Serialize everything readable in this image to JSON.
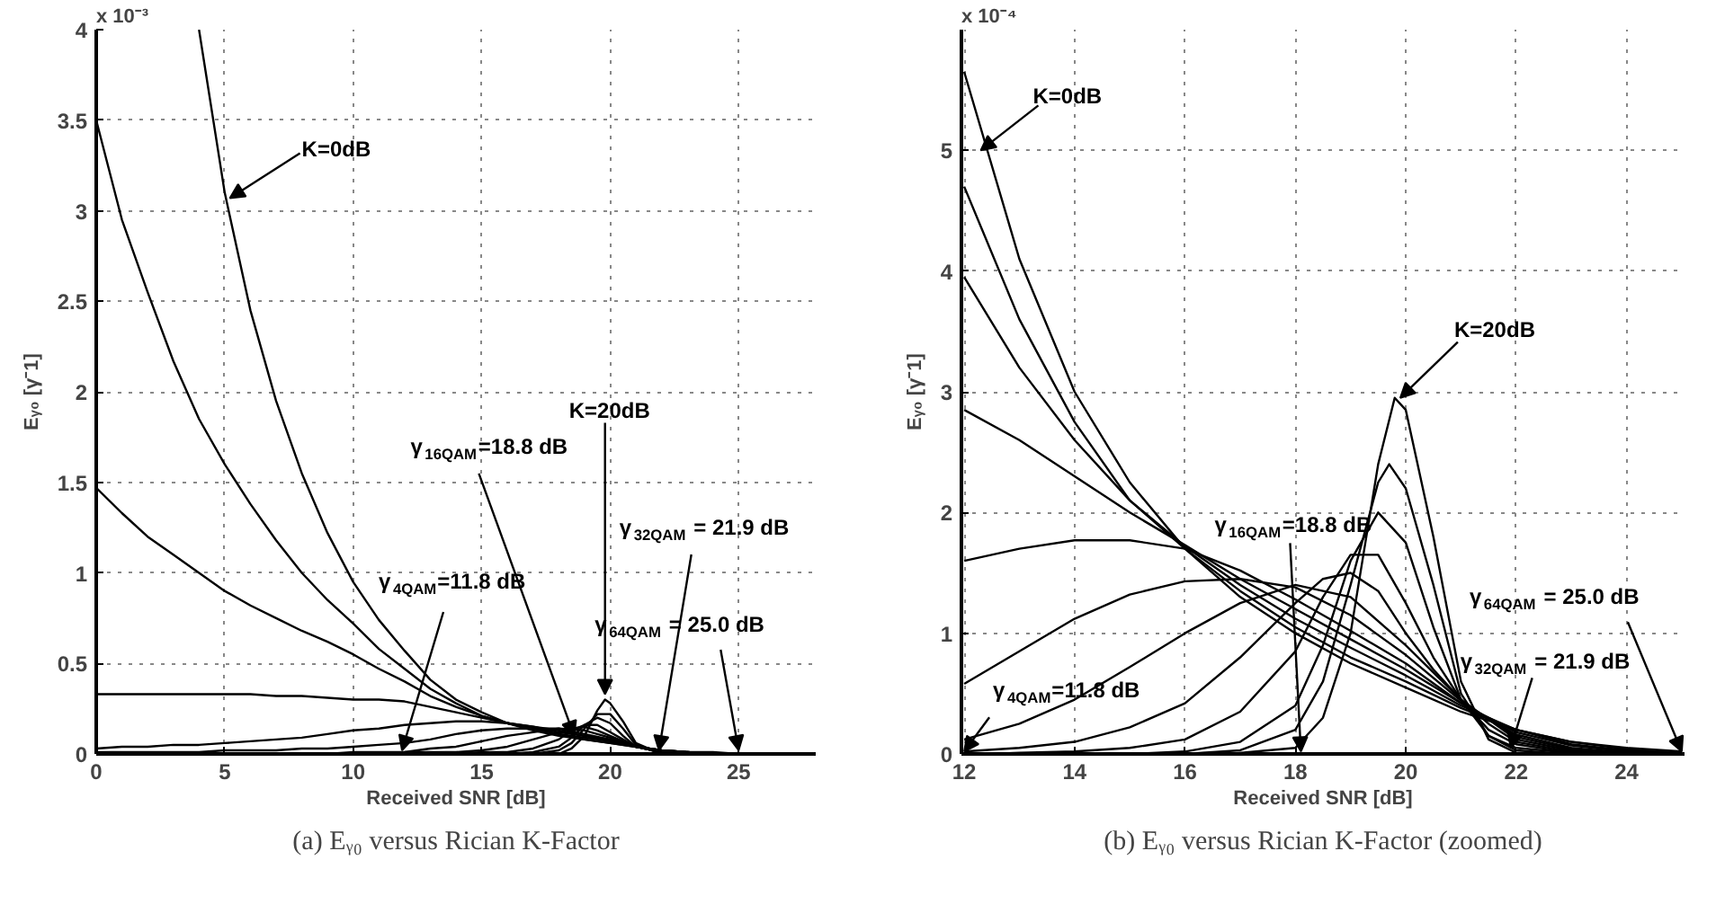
{
  "chart_data": [
    {
      "type": "line",
      "title": "(a) Eᵧ₀ versus Rician K-Factor",
      "xlabel": "Received SNR [dB]",
      "ylabel": "Eᵧ₀ [γ⁻1]",
      "xlim": [
        0,
        28
      ],
      "ylim": [
        0,
        4
      ],
      "xticks": [
        0,
        5,
        10,
        15,
        20,
        25
      ],
      "yticks": [
        0,
        0.5,
        1,
        1.5,
        2,
        2.5,
        3,
        3.5,
        4
      ],
      "grid": true,
      "x": [
        0,
        1,
        2,
        3,
        4,
        5,
        6,
        7,
        8,
        9,
        10,
        11,
        12,
        13,
        14,
        15,
        16,
        17,
        18,
        19,
        20,
        21,
        22,
        23,
        24,
        25
      ],
      "series": [
        {
          "color": "#000000",
          "x": [
            4,
            5,
            6,
            7,
            8,
            9,
            10,
            11,
            12,
            13,
            14,
            15,
            16,
            17,
            18,
            19,
            20,
            21,
            22,
            23,
            24,
            25
          ],
          "values": [
            4.0,
            3.1,
            2.45,
            1.95,
            1.55,
            1.22,
            0.95,
            0.74,
            0.57,
            0.41,
            0.3,
            0.23,
            0.17,
            0.13,
            0.1,
            0.08,
            0.06,
            0.04,
            0.02,
            0.01,
            0.01,
            0
          ]
        },
        {
          "color": "#000000",
          "values": [
            3.5,
            2.95,
            2.55,
            2.17,
            1.85,
            1.6,
            1.38,
            1.18,
            1.0,
            0.85,
            0.72,
            0.58,
            0.47,
            0.36,
            0.28,
            0.21,
            0.17,
            0.14,
            0.11,
            0.08,
            0.06,
            0.04,
            0.02,
            0.01,
            0,
            0
          ]
        },
        {
          "color": "#000000",
          "values": [
            1.47,
            1.33,
            1.2,
            1.1,
            1.0,
            0.9,
            0.82,
            0.75,
            0.68,
            0.62,
            0.55,
            0.47,
            0.4,
            0.32,
            0.26,
            0.21,
            0.17,
            0.14,
            0.11,
            0.09,
            0.07,
            0.04,
            0.02,
            0.01,
            0,
            0
          ]
        },
        {
          "color": "#000000",
          "values": [
            0.33,
            0.33,
            0.33,
            0.33,
            0.33,
            0.33,
            0.33,
            0.32,
            0.32,
            0.31,
            0.3,
            0.3,
            0.29,
            0.26,
            0.23,
            0.2,
            0.17,
            0.15,
            0.12,
            0.1,
            0.07,
            0.04,
            0.02,
            0.01,
            0,
            0
          ]
        },
        {
          "color": "#000000",
          "x": [
            0,
            1,
            2,
            3,
            4,
            5,
            6,
            7,
            8,
            9,
            10,
            11,
            12,
            13,
            14,
            15,
            16,
            17,
            18,
            19,
            20,
            21,
            22,
            23,
            24
          ],
          "values": [
            0.03,
            0.04,
            0.04,
            0.05,
            0.05,
            0.06,
            0.07,
            0.08,
            0.09,
            0.11,
            0.13,
            0.14,
            0.16,
            0.17,
            0.18,
            0.18,
            0.17,
            0.15,
            0.13,
            0.1,
            0.08,
            0.04,
            0.02,
            0.01,
            0
          ]
        },
        {
          "color": "#000000",
          "x": [
            0,
            1,
            2,
            3,
            4,
            5,
            6,
            7,
            8,
            9,
            10,
            11,
            12,
            13,
            14,
            15,
            16,
            17,
            18,
            19,
            20,
            21,
            22,
            23
          ],
          "values": [
            0.01,
            0.01,
            0.01,
            0.01,
            0.01,
            0.02,
            0.02,
            0.02,
            0.03,
            0.03,
            0.04,
            0.05,
            0.06,
            0.08,
            0.11,
            0.13,
            0.14,
            0.14,
            0.14,
            0.11,
            0.08,
            0.04,
            0.01,
            0
          ]
        },
        {
          "color": "#000000",
          "x": [
            8,
            9,
            10,
            11,
            12,
            13,
            14,
            15,
            16,
            17,
            18,
            19,
            20,
            21,
            22,
            23
          ],
          "values": [
            0,
            0,
            0.01,
            0.01,
            0.01,
            0.03,
            0.04,
            0.07,
            0.1,
            0.12,
            0.14,
            0.13,
            0.09,
            0.04,
            0.01,
            0
          ]
        },
        {
          "color": "#000000",
          "x": [
            12,
            14,
            15,
            16,
            17,
            18,
            18.5,
            19,
            19.5,
            20,
            20.5,
            21,
            22,
            23
          ],
          "values": [
            0.01,
            0.01,
            0.02,
            0.04,
            0.08,
            0.12,
            0.14,
            0.15,
            0.13,
            0.1,
            0.07,
            0.04,
            0.01,
            0
          ]
        },
        {
          "color": "#000000",
          "x": [
            13,
            14,
            15,
            16,
            17,
            18,
            18.5,
            19,
            19.5,
            20,
            20.5,
            21,
            22,
            23.5
          ],
          "values": [
            0,
            0,
            0.01,
            0.01,
            0.03,
            0.08,
            0.13,
            0.16,
            0.16,
            0.12,
            0.08,
            0.04,
            0.01,
            0
          ]
        },
        {
          "color": "#000000",
          "x": [
            15,
            16,
            17,
            18,
            18.5,
            19,
            19.5,
            20,
            20.5,
            21,
            22,
            22.5
          ],
          "values": [
            0,
            0,
            0.01,
            0.04,
            0.09,
            0.16,
            0.2,
            0.17,
            0.1,
            0.04,
            0.01,
            0
          ]
        },
        {
          "color": "#000000",
          "x": [
            16,
            17,
            18,
            18.5,
            19,
            19.5,
            20,
            20.5,
            21,
            22,
            22.8
          ],
          "values": [
            0,
            0,
            0.02,
            0.06,
            0.14,
            0.22,
            0.22,
            0.14,
            0.05,
            0,
            0
          ]
        },
        {
          "color": "#000000",
          "x": [
            17,
            18,
            18.5,
            19,
            19.5,
            19.8,
            20,
            20.5,
            21,
            22,
            22.2
          ],
          "values": [
            0,
            0,
            0.03,
            0.1,
            0.24,
            0.3,
            0.28,
            0.18,
            0.06,
            0,
            0
          ]
        }
      ],
      "annotations": [
        "x 10⁻³",
        {
          "text": "K=0dB",
          "x": 5.2,
          "y": 3.07
        },
        {
          "text": "γ$_{16QAM}$=18.8 dB",
          "x": 18.6,
          "y": 0.1
        },
        {
          "text": "K=20dB",
          "x": 19.8,
          "y": 0.33
        },
        {
          "text": "γ$_{32QAM}$ = 21.9 dB",
          "x": 21.9,
          "y": 0.02
        },
        {
          "text": "γ$_{64QAM}$ = 25.0 dB",
          "x": 25.0,
          "y": 0.02
        },
        {
          "text": "γ$_{4QAM}$=11.8 dB",
          "x": 11.9,
          "y": 0.02
        }
      ]
    },
    {
      "type": "line",
      "title": "(b) Eᵧ₀ versus Rician K-Factor (zoomed)",
      "xlabel": "Received SNR [dB]",
      "ylabel": "Eᵧ₀ [γ⁻1]",
      "xlim": [
        11.95,
        25.05
      ],
      "ylim": [
        0,
        6
      ],
      "xticks": [
        12,
        14,
        16,
        18,
        20,
        22,
        24
      ],
      "yticks": [
        0,
        1,
        2,
        3,
        4,
        5
      ],
      "grid": true,
      "x": [
        12,
        13,
        14,
        15,
        16,
        17,
        18,
        19,
        20,
        21,
        22,
        23,
        24,
        25
      ],
      "series": [
        {
          "color": "#000000",
          "values": [
            5.65,
            4.1,
            3.0,
            2.25,
            1.7,
            1.3,
            1.0,
            0.75,
            0.55,
            0.35,
            0.2,
            0.1,
            0.05,
            0.02
          ]
        },
        {
          "color": "#000000",
          "values": [
            4.7,
            3.6,
            2.75,
            2.1,
            1.7,
            1.35,
            1.05,
            0.8,
            0.6,
            0.38,
            0.2,
            0.1,
            0.04,
            0.01
          ]
        },
        {
          "color": "#000000",
          "values": [
            3.95,
            3.2,
            2.6,
            2.1,
            1.72,
            1.4,
            1.12,
            0.88,
            0.65,
            0.4,
            0.2,
            0.08,
            0.03,
            0.01
          ]
        },
        {
          "color": "#000000",
          "values": [
            2.85,
            2.6,
            2.3,
            2.0,
            1.73,
            1.45,
            1.2,
            0.95,
            0.7,
            0.42,
            0.18,
            0.07,
            0.02,
            0.01
          ]
        },
        {
          "color": "#000000",
          "values": [
            1.6,
            1.7,
            1.77,
            1.77,
            1.7,
            1.52,
            1.28,
            1.02,
            0.75,
            0.42,
            0.16,
            0.05,
            0.01,
            0
          ]
        },
        {
          "color": "#000000",
          "values": [
            0.58,
            0.85,
            1.12,
            1.32,
            1.43,
            1.45,
            1.38,
            1.15,
            0.82,
            0.44,
            0.14,
            0.04,
            0.01,
            0
          ]
        },
        {
          "color": "#000000",
          "x": [
            12,
            13,
            14,
            15,
            16,
            17,
            18,
            19,
            20,
            21,
            22,
            23,
            24
          ],
          "values": [
            0.12,
            0.25,
            0.45,
            0.72,
            1.0,
            1.25,
            1.4,
            1.3,
            0.9,
            0.45,
            0.12,
            0.03,
            0
          ]
        },
        {
          "color": "#000000",
          "x": [
            12,
            13,
            14,
            15,
            16,
            17,
            18,
            18.5,
            19,
            19.5,
            20,
            20.5,
            21,
            21.5,
            22,
            23,
            24.5
          ],
          "values": [
            0.02,
            0.05,
            0.1,
            0.22,
            0.42,
            0.8,
            1.25,
            1.45,
            1.5,
            1.35,
            1.0,
            0.7,
            0.45,
            0.25,
            0.1,
            0.02,
            0
          ]
        },
        {
          "color": "#000000",
          "x": [
            12.5,
            13,
            14,
            15,
            16,
            17,
            18,
            18.5,
            19,
            19.5,
            20,
            20.5,
            21,
            21.5,
            22,
            23,
            23.8
          ],
          "values": [
            0,
            0.01,
            0.02,
            0.05,
            0.12,
            0.35,
            0.85,
            1.3,
            1.65,
            1.65,
            1.25,
            0.8,
            0.45,
            0.2,
            0.08,
            0.01,
            0
          ]
        },
        {
          "color": "#000000",
          "x": [
            15,
            16,
            17,
            18,
            18.5,
            19,
            19.5,
            20,
            20.5,
            21,
            21.5,
            22,
            23.2
          ],
          "values": [
            0,
            0.02,
            0.1,
            0.4,
            0.9,
            1.6,
            2.0,
            1.75,
            1.05,
            0.45,
            0.15,
            0.05,
            0
          ]
        },
        {
          "color": "#000000",
          "x": [
            16,
            17,
            18,
            18.5,
            19,
            19.5,
            19.7,
            20,
            20.5,
            21,
            21.5,
            22,
            22.9
          ],
          "values": [
            0,
            0.03,
            0.2,
            0.6,
            1.4,
            2.25,
            2.4,
            2.2,
            1.4,
            0.5,
            0.15,
            0.03,
            0
          ]
        },
        {
          "color": "#000000",
          "x": [
            16.8,
            18,
            18.5,
            19,
            19.5,
            19.8,
            20,
            20.5,
            21,
            21.5,
            22,
            22.6
          ],
          "values": [
            0,
            0.05,
            0.3,
            1.0,
            2.4,
            2.95,
            2.85,
            1.8,
            0.6,
            0.12,
            0.01,
            0
          ]
        }
      ],
      "annotations": [
        "x 10⁻⁴",
        {
          "text": "K=0dB",
          "x": 12.3,
          "y": 5.0
        },
        {
          "text": "K=20dB",
          "x": 19.9,
          "y": 2.95
        },
        {
          "text": "γ$_{16QAM}$=18.8 dB",
          "x": 18.1,
          "y": 0.02
        },
        {
          "text": "γ$_{4QAM}$=11.8 dB",
          "x": 12.0,
          "y": 0.02
        },
        {
          "text": "γ$_{32QAM}$ = 21.9 dB",
          "x": 21.9,
          "y": 0.05
        },
        {
          "text": "γ$_{64QAM}$ = 25.0 dB",
          "x": 25.0,
          "y": 0.02
        }
      ]
    }
  ]
}
